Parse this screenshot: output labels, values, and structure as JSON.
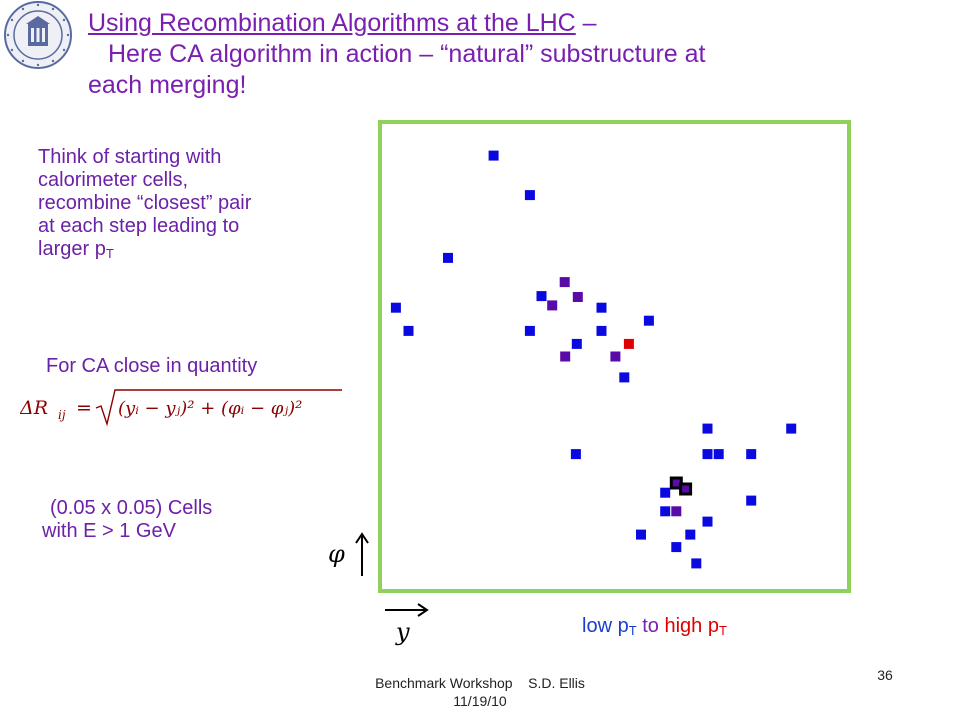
{
  "title": {
    "link_text": "Using Recombination Algorithms at the LHC",
    "dash": " –",
    "line2": "Here CA algorithm in action – “natural” substructure at",
    "line3": "each merging!"
  },
  "intro": {
    "line1": "Think of starting with",
    "line2": "calorimeter cells,",
    "line3": "recombine “closest” pair",
    "line4": "at each step leading to",
    "line5_pre": "larger p",
    "line5_sub": "T"
  },
  "ca_label": "For CA close in quantity",
  "formula": {
    "lhs": "ΔR",
    "lhs_sub": "ij",
    "radicand": "(y",
    "text": "(y_i − y_j)^2 + (φ_i − φ_j)^2"
  },
  "cells": {
    "line1": "(0.05 x 0.05) Cells",
    "line2": "with E > 1 GeV"
  },
  "axes": {
    "phi": "φ",
    "y": "y"
  },
  "legend": {
    "low_pre": "low p",
    "sub": "T",
    "to": " to ",
    "high_pre": "high p"
  },
  "footer": {
    "line1": "Benchmark Workshop    S.D. Ellis",
    "line2": "11/19/10"
  },
  "page_number": "36",
  "colors": {
    "low": "#0a0ae0",
    "mid": "#5a0aa8",
    "high": "#e00000",
    "frame": "#8fd15a",
    "title": "#7a1fb0"
  },
  "chart_data": {
    "type": "scatter",
    "title": "",
    "xlabel": "y",
    "ylabel": "φ",
    "xlim": [
      0,
      1
    ],
    "ylim": [
      0,
      1
    ],
    "grid": false,
    "points": [
      {
        "x": 0.24,
        "y": 0.932,
        "c": "low"
      },
      {
        "x": 0.318,
        "y": 0.847,
        "c": "low"
      },
      {
        "x": 0.142,
        "y": 0.712,
        "c": "low"
      },
      {
        "x": 0.03,
        "y": 0.605,
        "c": "low"
      },
      {
        "x": 0.057,
        "y": 0.555,
        "c": "low"
      },
      {
        "x": 0.393,
        "y": 0.66,
        "c": "mid"
      },
      {
        "x": 0.343,
        "y": 0.63,
        "c": "low"
      },
      {
        "x": 0.366,
        "y": 0.61,
        "c": "mid"
      },
      {
        "x": 0.421,
        "y": 0.628,
        "c": "mid"
      },
      {
        "x": 0.472,
        "y": 0.605,
        "c": "low"
      },
      {
        "x": 0.574,
        "y": 0.577,
        "c": "low"
      },
      {
        "x": 0.318,
        "y": 0.555,
        "c": "low"
      },
      {
        "x": 0.472,
        "y": 0.555,
        "c": "low"
      },
      {
        "x": 0.419,
        "y": 0.527,
        "c": "low"
      },
      {
        "x": 0.531,
        "y": 0.527,
        "c": "high"
      },
      {
        "x": 0.394,
        "y": 0.5,
        "c": "mid"
      },
      {
        "x": 0.502,
        "y": 0.5,
        "c": "mid"
      },
      {
        "x": 0.521,
        "y": 0.455,
        "c": "low"
      },
      {
        "x": 0.7,
        "y": 0.345,
        "c": "low"
      },
      {
        "x": 0.88,
        "y": 0.345,
        "c": "low"
      },
      {
        "x": 0.7,
        "y": 0.29,
        "c": "low"
      },
      {
        "x": 0.724,
        "y": 0.29,
        "c": "low"
      },
      {
        "x": 0.794,
        "y": 0.29,
        "c": "low"
      },
      {
        "x": 0.417,
        "y": 0.29,
        "c": "low"
      },
      {
        "x": 0.633,
        "y": 0.228,
        "c": "mid",
        "hl": true
      },
      {
        "x": 0.653,
        "y": 0.215,
        "c": "mid",
        "hl": true
      },
      {
        "x": 0.609,
        "y": 0.207,
        "c": "low"
      },
      {
        "x": 0.794,
        "y": 0.19,
        "c": "low"
      },
      {
        "x": 0.609,
        "y": 0.167,
        "c": "low"
      },
      {
        "x": 0.633,
        "y": 0.167,
        "c": "mid"
      },
      {
        "x": 0.7,
        "y": 0.145,
        "c": "low"
      },
      {
        "x": 0.557,
        "y": 0.117,
        "c": "low"
      },
      {
        "x": 0.663,
        "y": 0.117,
        "c": "low"
      },
      {
        "x": 0.633,
        "y": 0.09,
        "c": "low"
      },
      {
        "x": 0.676,
        "y": 0.055,
        "c": "low"
      }
    ]
  }
}
